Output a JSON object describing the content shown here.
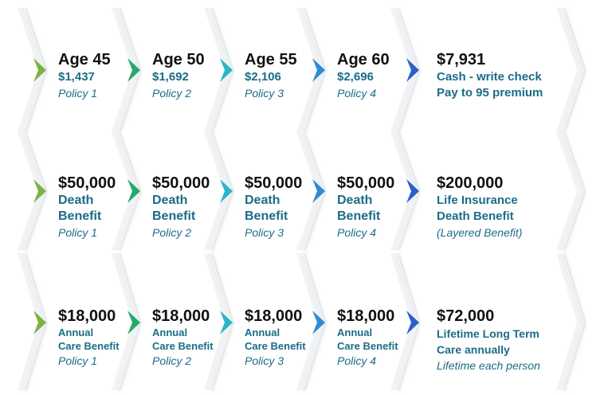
{
  "colors": {
    "arrow1": "#7cb342",
    "arrow2": "#26a96c",
    "arrow3": "#2bb5c9",
    "arrow4": "#2d8cd6",
    "arrow5": "#2d5fc9",
    "text_dark": "#111111",
    "text_teal": "#1b6c88",
    "chevron_shadow": "#d9dde2"
  },
  "rows": [
    {
      "cells": [
        {
          "title": "Age 45",
          "lines": [
            "$1,437"
          ],
          "note": "Policy 1"
        },
        {
          "title": "Age 50",
          "lines": [
            "$1,692"
          ],
          "note": "Policy 2"
        },
        {
          "title": "Age 55",
          "lines": [
            "$2,106"
          ],
          "note": "Policy 3"
        },
        {
          "title": "Age 60",
          "lines": [
            "$2,696"
          ],
          "note": "Policy 4"
        },
        {
          "title": "$7,931",
          "lines": [
            "Cash - write check",
            "Pay to 95 premium"
          ],
          "note": ""
        }
      ]
    },
    {
      "cells": [
        {
          "title": "$50,000",
          "lines": [
            "Death",
            "Benefit"
          ],
          "note": "Policy 1"
        },
        {
          "title": "$50,000",
          "lines": [
            "Death",
            "Benefit"
          ],
          "note": "Policy 2"
        },
        {
          "title": "$50,000",
          "lines": [
            "Death",
            "Benefit"
          ],
          "note": "Policy 3"
        },
        {
          "title": "$50,000",
          "lines": [
            "Death",
            "Benefit"
          ],
          "note": "Policy 4"
        },
        {
          "title": "$200,000",
          "lines": [
            "Life Insurance",
            "Death Benefit"
          ],
          "note": "(Layered Benefit)"
        }
      ]
    },
    {
      "cells": [
        {
          "title": "$18,000",
          "lines": [
            "Annual",
            "Care Benefit"
          ],
          "note": "Policy 1"
        },
        {
          "title": "$18,000",
          "lines": [
            "Annual",
            "Care Benefit"
          ],
          "note": "Policy 2"
        },
        {
          "title": "$18,000",
          "lines": [
            "Annual",
            "Care Benefit"
          ],
          "note": "Policy 3"
        },
        {
          "title": "$18,000",
          "lines": [
            "Annual",
            "Care Benefit"
          ],
          "note": "Policy 4"
        },
        {
          "title": "$72,000",
          "lines": [
            "Lifetime Long Term",
            "Care annually"
          ],
          "note": "Lifetime each person"
        }
      ]
    }
  ]
}
